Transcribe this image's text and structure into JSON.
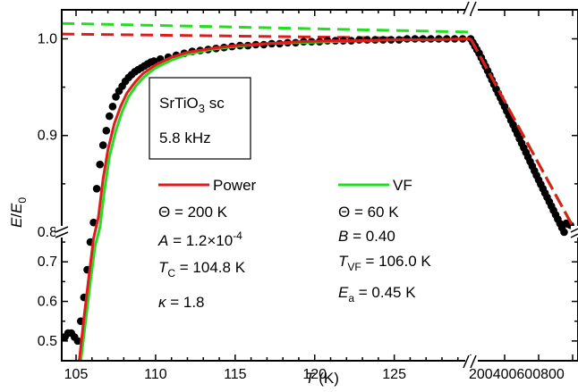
{
  "chart_data": {
    "type": "line",
    "xlabel": "T (K)",
    "ylabel": "E/E0",
    "axis_breaks": {
      "x": [
        129.8,
        200
      ],
      "y": [
        0.775,
        0.8
      ]
    },
    "x_range_low": [
      104.1,
      129.8
    ],
    "x_range_high": [
      200,
      800
    ],
    "y_range_low": [
      0.45,
      0.775
    ],
    "y_range_high": [
      0.8,
      1.03
    ],
    "x_ticks_low": [
      "105",
      "110",
      "115",
      "120",
      "125"
    ],
    "x_ticks_high": [
      "200",
      "400",
      "600",
      "800"
    ],
    "y_ticks_high": [
      "1.0",
      "0.9",
      "0.8"
    ],
    "y_ticks_low": [
      "0.7",
      "0.6",
      "0.5"
    ],
    "inset": {
      "material_base": "SrTiO",
      "material_sub": "3",
      "material_suffix": " sc",
      "frequency": "5.8 kHz"
    },
    "legend": [
      {
        "name": "Power",
        "color": "#e31a1c"
      },
      {
        "name": "VF",
        "color": "#22dd22"
      }
    ],
    "params": {
      "power": {
        "theta": "Θ = 200 K",
        "A_prefix": "A",
        "A_text": " = 1.2×10",
        "A_exp": "-4",
        "Tc_prefix": "T",
        "Tc_sub": "C",
        "Tc_text": " = 104.8 K",
        "kappa_prefix": "κ",
        "kappa_text": " = 1.8"
      },
      "vf": {
        "theta": "Θ = 60 K",
        "B_prefix": "B",
        "B_text": " = 0.40",
        "Tvf_prefix": "T",
        "Tvf_sub": "VF",
        "Tvf_text": " = 106.0 K",
        "Ea_prefix": "E",
        "Ea_sub": "a",
        "Ea_text": " = 0.45 K"
      }
    },
    "colors": {
      "power": "#e31a1c",
      "vf": "#22dd22",
      "data": "#000000"
    },
    "data_points": {
      "x": [
        104.1,
        104.3,
        104.5,
        104.7,
        104.9,
        105.1,
        105.3,
        105.5,
        105.7,
        105.9,
        106.1,
        106.3,
        106.5,
        106.7,
        106.9,
        107.1,
        107.3,
        107.5,
        107.7,
        107.9,
        108.1,
        108.3,
        108.5,
        108.7,
        108.9,
        109.1,
        109.3,
        109.5,
        109.7,
        109.9,
        110.3,
        110.8,
        111.3,
        111.8,
        112.3,
        112.8,
        113.3,
        113.8,
        114.3,
        114.8,
        115.3,
        115.8,
        116.3,
        116.8,
        117.3,
        117.8,
        118.3,
        118.8,
        119.3,
        119.8,
        120.3,
        120.8,
        121.3,
        121.8,
        122.3,
        122.8,
        123.3,
        123.8,
        124.3,
        124.8,
        125.3,
        125.8,
        126.3,
        126.8,
        127.3,
        127.8,
        128.3,
        128.8,
        129.3
      ],
      "y": [
        0.51,
        0.51,
        0.52,
        0.52,
        0.51,
        0.5,
        0.55,
        0.61,
        0.68,
        0.75,
        0.81,
        0.845,
        0.87,
        0.89,
        0.905,
        0.92,
        0.93,
        0.94,
        0.946,
        0.951,
        0.956,
        0.96,
        0.963,
        0.966,
        0.968,
        0.97,
        0.972,
        0.974,
        0.976,
        0.977,
        0.979,
        0.981,
        0.983,
        0.985,
        0.987,
        0.988,
        0.989,
        0.99,
        0.991,
        0.992,
        0.993,
        0.993,
        0.994,
        0.994,
        0.995,
        0.995,
        0.996,
        0.996,
        0.997,
        0.997,
        0.997,
        0.998,
        0.998,
        0.998,
        0.998,
        0.999,
        0.999,
        0.999,
        0.999,
        0.999,
        0.999,
        1.0,
        1.0,
        1.0,
        1.0,
        1.0,
        1.0,
        1.0,
        1.0
      ],
      "x_high": [
        200,
        250,
        300,
        350,
        400,
        450,
        500,
        550,
        600,
        650,
        700,
        750,
        800
      ],
      "y_high": [
        1.0,
        0.985,
        0.967,
        0.948,
        0.93,
        0.911,
        0.892,
        0.873,
        0.854,
        0.836,
        0.818,
        0.8,
        0.79
      ]
    },
    "power_fit": {
      "x": [
        105.2,
        105.5,
        105.8,
        106.1,
        106.4,
        106.7,
        107.0,
        107.4,
        107.8,
        108.2,
        108.7,
        109.2,
        110.0,
        111.0,
        112.0,
        113.5,
        115.0,
        117.0,
        119.0,
        121.0,
        123.0,
        125.0,
        127.0,
        129.8
      ],
      "y": [
        0.45,
        0.56,
        0.66,
        0.76,
        0.815,
        0.855,
        0.885,
        0.912,
        0.93,
        0.944,
        0.955,
        0.964,
        0.973,
        0.981,
        0.986,
        0.99,
        0.993,
        0.995,
        0.997,
        0.998,
        0.998,
        0.999,
        0.999,
        1.0
      ],
      "y_high": [
        1.0,
        0.79
      ],
      "x_high": [
        200,
        800
      ]
    },
    "vf_fit": {
      "x": [
        105.3,
        105.6,
        105.9,
        106.2,
        106.5,
        106.8,
        107.1,
        107.5,
        107.9,
        108.3,
        108.8,
        109.3,
        110.0,
        111.0,
        112.0,
        113.5,
        115.0,
        117.0,
        119.0,
        121.0,
        123.0,
        125.0,
        127.0,
        129.8
      ],
      "y": [
        0.45,
        0.55,
        0.65,
        0.74,
        0.805,
        0.845,
        0.878,
        0.905,
        0.925,
        0.94,
        0.952,
        0.961,
        0.97,
        0.978,
        0.984,
        0.989,
        0.992,
        0.995,
        0.996,
        0.997,
        0.998,
        0.999,
        0.999,
        1.0
      ],
      "y_high": [
        1.0,
        0.792
      ],
      "x_high": [
        200,
        800
      ]
    },
    "power_asymptote": {
      "x": [
        104.1,
        129.8
      ],
      "y": [
        1.005,
        1.0
      ]
    },
    "vf_asymptote": {
      "x": [
        104.1,
        129.8
      ],
      "y": [
        1.016,
        1.007
      ]
    }
  }
}
